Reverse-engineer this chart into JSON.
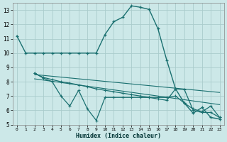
{
  "xlabel": "Humidex (Indice chaleur)",
  "bg_color": "#cce8e8",
  "grid_color": "#aacccc",
  "line_color": "#1a7070",
  "xlim": [
    -0.5,
    23.5
  ],
  "ylim": [
    5,
    13.5
  ],
  "yticks": [
    5,
    6,
    7,
    8,
    9,
    10,
    11,
    12,
    13
  ],
  "xticks": [
    0,
    1,
    2,
    3,
    4,
    5,
    6,
    7,
    8,
    9,
    10,
    11,
    12,
    13,
    14,
    15,
    16,
    17,
    18,
    19,
    20,
    21,
    22,
    23
  ],
  "line1_x": [
    0,
    1,
    2,
    3,
    4,
    5,
    6,
    7,
    8,
    9,
    10,
    11,
    12,
    13,
    14,
    15,
    16,
    17,
    18,
    19,
    20,
    21,
    22,
    23
  ],
  "line1_y": [
    11.2,
    10.0,
    10.0,
    10.0,
    10.0,
    10.0,
    10.0,
    10.0,
    10.0,
    10.0,
    11.3,
    12.2,
    12.5,
    13.3,
    13.2,
    13.05,
    11.7,
    9.5,
    7.5,
    6.5,
    5.8,
    6.2,
    5.5,
    5.4
  ],
  "line2_x": [
    2,
    3,
    4,
    5,
    6,
    7,
    8,
    9,
    10,
    11,
    12,
    13,
    14,
    15,
    16,
    17,
    18,
    19,
    20,
    21,
    22,
    23
  ],
  "line2_y": [
    8.6,
    8.25,
    8.0,
    7.0,
    6.3,
    7.4,
    6.1,
    5.3,
    6.9,
    6.9,
    6.9,
    6.9,
    6.9,
    6.9,
    6.9,
    6.9,
    7.0,
    6.5,
    6.1,
    5.9,
    6.3,
    5.5
  ],
  "line3_x": [
    2,
    3,
    4,
    5,
    6,
    7,
    8,
    9,
    10,
    11,
    12,
    13,
    14,
    15,
    16,
    17,
    18,
    19,
    20,
    21,
    22,
    23
  ],
  "line3_y": [
    8.6,
    8.3,
    8.15,
    8.0,
    7.9,
    7.78,
    7.65,
    7.5,
    7.4,
    7.3,
    7.2,
    7.1,
    7.0,
    6.9,
    6.8,
    6.7,
    7.5,
    7.45,
    6.0,
    5.85,
    5.85,
    5.5
  ],
  "line4_x": [
    2,
    23
  ],
  "line4_y": [
    8.5,
    7.25
  ],
  "line5_x": [
    2,
    23
  ],
  "line5_y": [
    8.2,
    6.4
  ]
}
